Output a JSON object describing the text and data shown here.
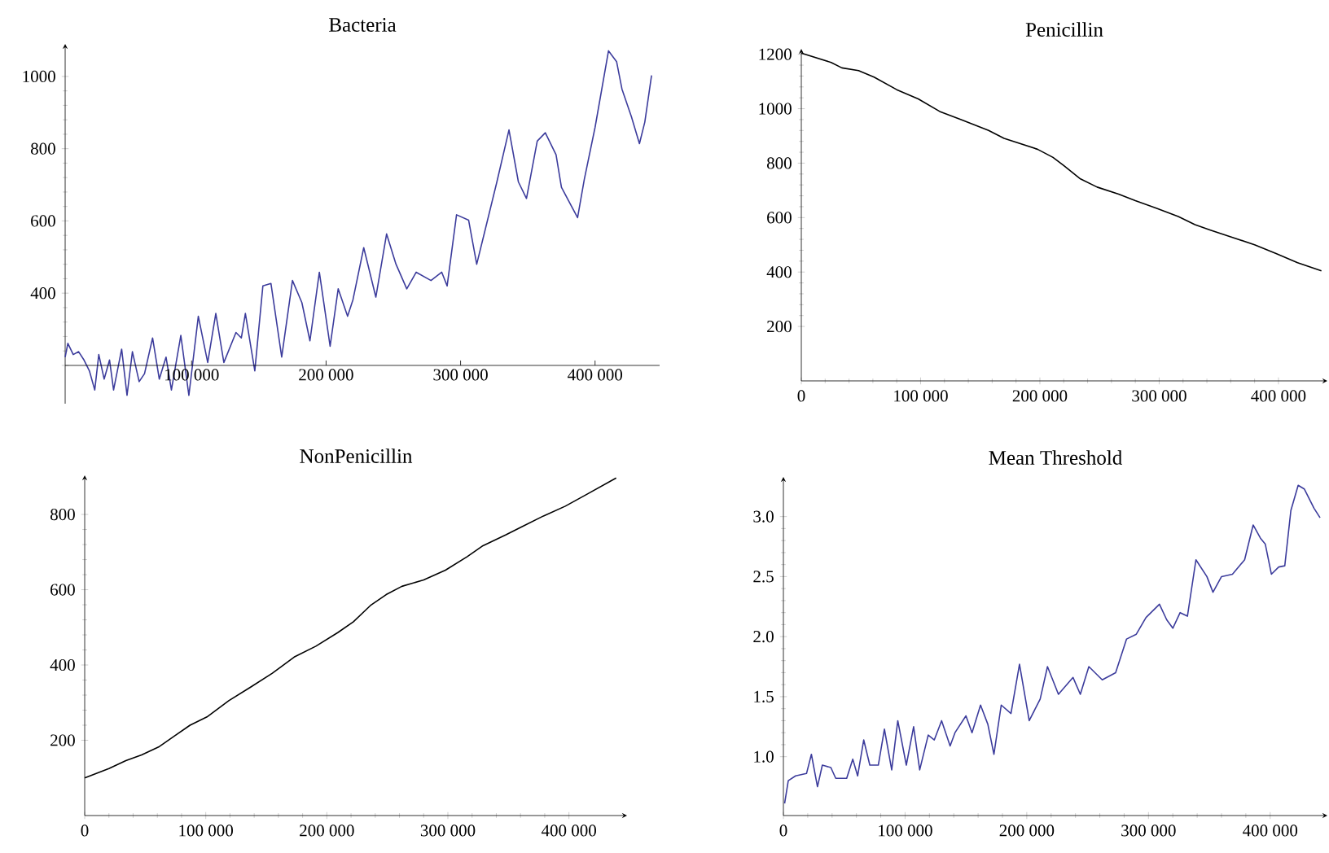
{
  "chart_data": [
    {
      "type": "line",
      "title": "Bacteria",
      "color": "#3c3c9c",
      "x": [
        6000,
        8000,
        12000,
        16000,
        20000,
        24000,
        28000,
        31000,
        35000,
        39000,
        42000,
        48000,
        52000,
        56000,
        61000,
        65000,
        71000,
        76000,
        81000,
        85000,
        92000,
        98000,
        105000,
        112000,
        118000,
        124000,
        133000,
        137000,
        140000,
        147000,
        153000,
        159000,
        167000,
        175000,
        182000,
        188000,
        195000,
        203000,
        209000,
        216000,
        220000,
        228000,
        237000,
        245000,
        252000,
        260000,
        267000,
        278000,
        286000,
        290000,
        297000,
        306000,
        312000,
        318000,
        327000,
        336000,
        343000,
        349000,
        357000,
        363000,
        371000,
        375000,
        387000,
        392000,
        400000,
        410000,
        416000,
        420000,
        427000,
        433000,
        437000,
        442000
      ],
      "values": [
        223,
        261,
        230,
        238,
        215,
        185,
        132,
        230,
        162,
        215,
        132,
        245,
        117,
        238,
        155,
        177,
        276,
        162,
        223,
        132,
        283,
        117,
        336,
        208,
        344,
        208,
        291,
        276,
        344,
        185,
        420,
        427,
        223,
        435,
        374,
        268,
        458,
        253,
        412,
        336,
        382,
        526,
        389,
        564,
        480,
        412,
        458,
        435,
        458,
        420,
        617,
        602,
        480,
        571,
        708,
        852,
        708,
        662,
        821,
        844,
        783,
        693,
        609,
        715,
        859,
        1071,
        1041,
        965,
        889,
        814,
        874,
        1003
      ],
      "xlim": [
        6000,
        448000
      ],
      "ylim": [
        94,
        1090
      ],
      "xticks": [
        {
          "value": 100000,
          "label": "100 000"
        },
        {
          "value": 200000,
          "label": "200 000"
        },
        {
          "value": 300000,
          "label": "300 000"
        },
        {
          "value": 400000,
          "label": "400 000"
        }
      ],
      "yticks": [
        {
          "value": 200,
          "label": null
        },
        400,
        600,
        800,
        1000
      ]
    },
    {
      "type": "line",
      "title": "Penicillin",
      "color": "#000000",
      "x": [
        0,
        25000,
        34000,
        48000,
        61000,
        80000,
        98000,
        116000,
        134000,
        157000,
        170000,
        198000,
        211000,
        220000,
        234000,
        248000,
        266000,
        280000,
        298000,
        316000,
        330000,
        343000,
        361000,
        380000,
        398000,
        416000,
        436000
      ],
      "values": [
        1204,
        1170,
        1150,
        1140,
        1116,
        1070,
        1036,
        990,
        960,
        920,
        891,
        851,
        821,
        791,
        742,
        712,
        686,
        662,
        634,
        604,
        574,
        554,
        528,
        500,
        468,
        434,
        404
      ],
      "xlim": [
        0,
        441000
      ],
      "ylim": [
        0,
        1220
      ],
      "xticks": [
        0,
        {
          "value": 100000,
          "label": "100 000"
        },
        {
          "value": 200000,
          "label": "200 000"
        },
        {
          "value": 300000,
          "label": "300 000"
        },
        {
          "value": 400000,
          "label": "400 000"
        }
      ],
      "yticks": [
        200,
        400,
        600,
        800,
        1000,
        1200
      ]
    },
    {
      "type": "line",
      "title": "NonPenicillin",
      "color": "#000000",
      "x": [
        0,
        20000,
        34000,
        47000,
        61000,
        74000,
        87000,
        101000,
        119000,
        137000,
        155000,
        173000,
        191000,
        209000,
        222000,
        236000,
        249000,
        262000,
        280000,
        298000,
        316000,
        329000,
        348000,
        361000,
        379000,
        397000,
        415000,
        439000
      ],
      "values": [
        100,
        125,
        146,
        161,
        182,
        211,
        240,
        262,
        305,
        341,
        378,
        421,
        450,
        486,
        515,
        558,
        587,
        609,
        626,
        652,
        688,
        717,
        746,
        767,
        796,
        822,
        854,
        897
      ],
      "xlim": [
        0,
        448000
      ],
      "ylim": [
        0,
        904
      ],
      "xticks": [
        0,
        {
          "value": 100000,
          "label": "100 000"
        },
        {
          "value": 200000,
          "label": "200 000"
        },
        {
          "value": 300000,
          "label": "300 000"
        },
        {
          "value": 400000,
          "label": "400 000"
        }
      ],
      "yticks": [
        200,
        400,
        600,
        800
      ]
    },
    {
      "type": "line",
      "title": "Mean Threshold",
      "color": "#3c3c9c",
      "x": [
        1000,
        4000,
        10000,
        19000,
        23000,
        28000,
        32000,
        39000,
        43000,
        52000,
        57000,
        61000,
        66000,
        71000,
        78000,
        83000,
        89000,
        94000,
        101000,
        107000,
        112000,
        119000,
        124000,
        130000,
        137000,
        141000,
        150000,
        155000,
        162000,
        168000,
        173000,
        179000,
        187000,
        194000,
        202000,
        211000,
        217000,
        226000,
        238000,
        244000,
        251000,
        262000,
        273000,
        282000,
        290000,
        298000,
        309000,
        315000,
        320000,
        326000,
        332000,
        339000,
        348000,
        353000,
        360000,
        369000,
        379000,
        386000,
        392000,
        396000,
        401000,
        407000,
        412000,
        417000,
        423000,
        428000,
        436000,
        441000
      ],
      "values": [
        0.61,
        0.8,
        0.84,
        0.86,
        1.02,
        0.75,
        0.93,
        0.91,
        0.82,
        0.82,
        0.98,
        0.84,
        1.14,
        0.93,
        0.93,
        1.23,
        0.89,
        1.3,
        0.93,
        1.25,
        0.89,
        1.18,
        1.14,
        1.3,
        1.09,
        1.2,
        1.34,
        1.2,
        1.43,
        1.27,
        1.02,
        1.43,
        1.36,
        1.77,
        1.3,
        1.48,
        1.75,
        1.52,
        1.66,
        1.52,
        1.75,
        1.64,
        1.7,
        1.98,
        2.02,
        2.16,
        2.27,
        2.14,
        2.07,
        2.2,
        2.17,
        2.64,
        2.5,
        2.37,
        2.5,
        2.52,
        2.64,
        2.93,
        2.82,
        2.77,
        2.52,
        2.58,
        2.59,
        3.05,
        3.26,
        3.23,
        3.07,
        2.99
      ],
      "xlim": [
        0,
        447000
      ],
      "ylim": [
        0.51,
        3.33
      ],
      "xticks": [
        0,
        {
          "value": 100000,
          "label": "100 000"
        },
        {
          "value": 200000,
          "label": "200 000"
        },
        {
          "value": 300000,
          "label": "300 000"
        },
        {
          "value": 400000,
          "label": "400 000"
        }
      ],
      "yticks": [
        {
          "value": 1,
          "label": "1.0"
        },
        {
          "value": 1.5,
          "label": "1.5"
        },
        {
          "value": 2,
          "label": "2.0"
        },
        {
          "value": 2.5,
          "label": "2.5"
        },
        {
          "value": 3,
          "label": "3.0"
        }
      ]
    }
  ]
}
